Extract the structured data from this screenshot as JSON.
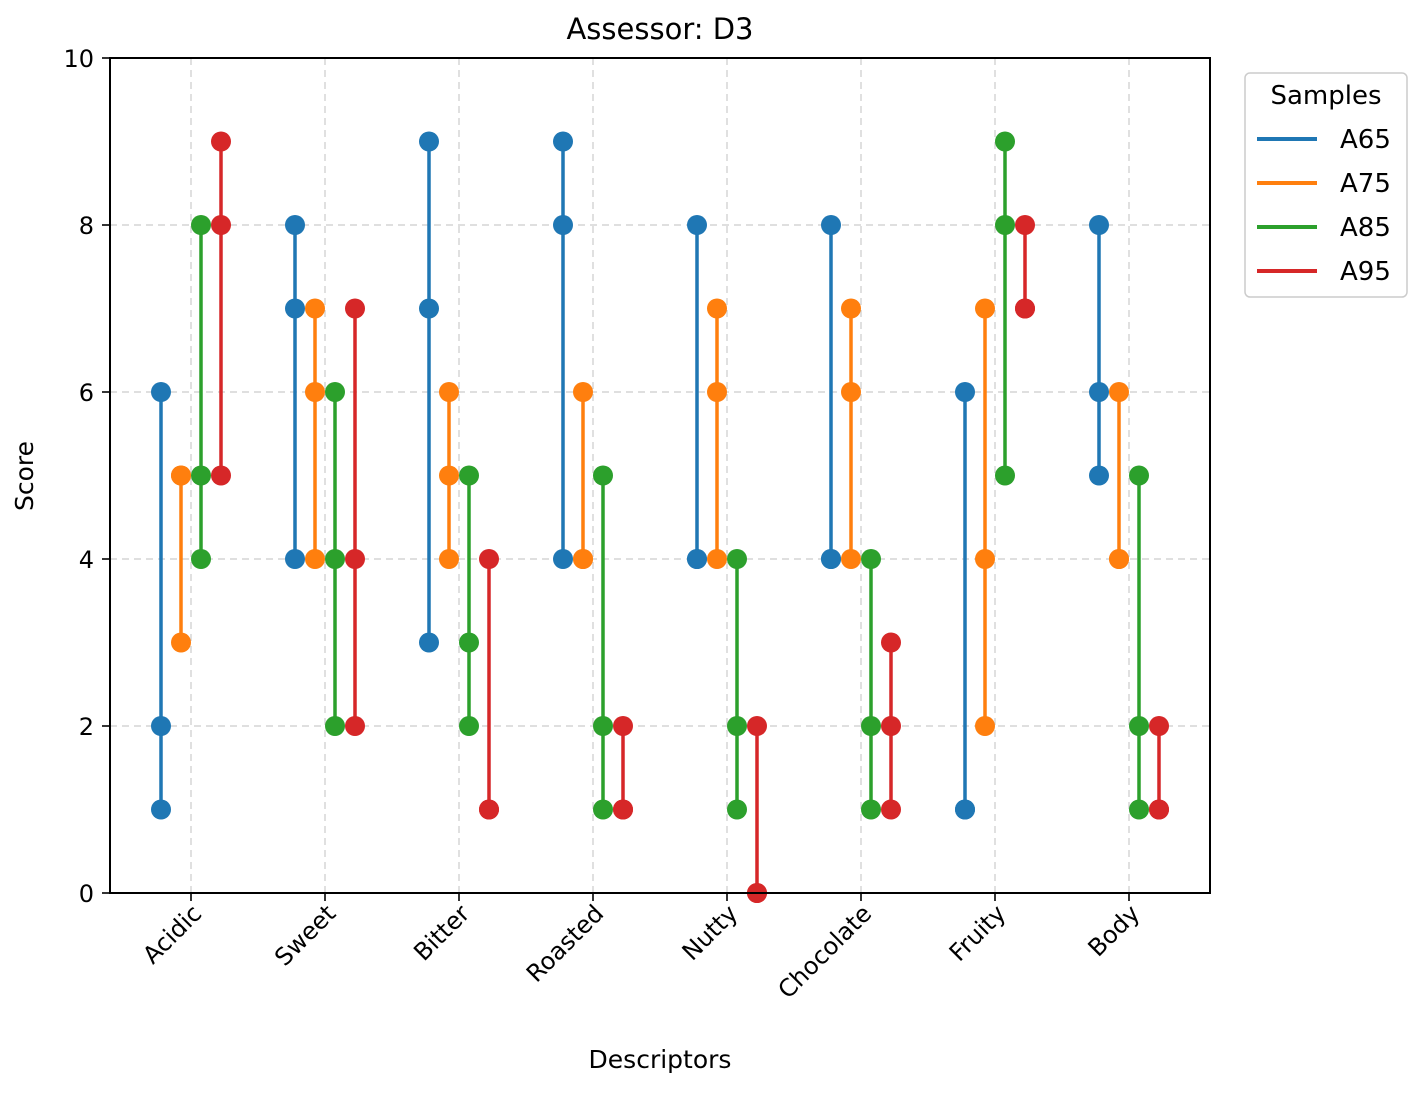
{
  "chart_data": {
    "type": "line",
    "subtype": "range-dot",
    "title": "Assessor: D3",
    "xlabel": "Descriptors",
    "ylabel": "Score",
    "ylim": [
      0,
      10
    ],
    "yticks": [
      0,
      2,
      4,
      6,
      8,
      10
    ],
    "grid": true,
    "legend": {
      "title": "Samples",
      "placement": "outside-top-right"
    },
    "categories": [
      "Acidic",
      "Sweet",
      "Bitter",
      "Roasted",
      "Nutty",
      "Chocolate",
      "Fruity",
      "Body"
    ],
    "series": [
      {
        "name": "A65",
        "color": "#1f77b4",
        "values": [
          [
            6,
            2,
            1
          ],
          [
            8,
            7,
            4
          ],
          [
            9,
            7,
            3
          ],
          [
            9,
            8,
            4
          ],
          [
            8,
            4,
            4
          ],
          [
            8,
            4,
            4
          ],
          [
            6,
            1,
            1
          ],
          [
            8,
            6,
            5
          ]
        ]
      },
      {
        "name": "A75",
        "color": "#ff7f0e",
        "values": [
          [
            5,
            3,
            5
          ],
          [
            7,
            6,
            4
          ],
          [
            6,
            5,
            4
          ],
          [
            6,
            4,
            4
          ],
          [
            7,
            6,
            4
          ],
          [
            7,
            6,
            4
          ],
          [
            7,
            4,
            2
          ],
          [
            6,
            4,
            4
          ]
        ]
      },
      {
        "name": "A85",
        "color": "#2ca02c",
        "values": [
          [
            8,
            5,
            4
          ],
          [
            6,
            4,
            2
          ],
          [
            5,
            3,
            2
          ],
          [
            5,
            2,
            1
          ],
          [
            4,
            2,
            1
          ],
          [
            4,
            2,
            1
          ],
          [
            9,
            8,
            5
          ],
          [
            5,
            2,
            1
          ]
        ]
      },
      {
        "name": "A95",
        "color": "#d62728",
        "values": [
          [
            9,
            8,
            5
          ],
          [
            7,
            4,
            2
          ],
          [
            4,
            1,
            1
          ],
          [
            2,
            1,
            1
          ],
          [
            2,
            0,
            0
          ],
          [
            3,
            2,
            1
          ],
          [
            8,
            7,
            7
          ],
          [
            2,
            1,
            1
          ]
        ]
      }
    ]
  }
}
